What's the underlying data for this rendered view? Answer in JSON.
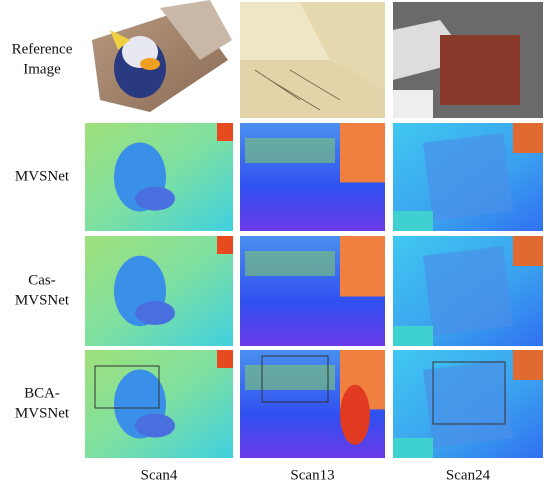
{
  "row_labels": [
    [
      "Reference",
      "Image"
    ],
    [
      "MVSNet"
    ],
    [
      "Cas-",
      "MVSNet"
    ],
    [
      "BCA-",
      "MVSNet"
    ]
  ],
  "column_labels": [
    "Scan4",
    "Scan13",
    "Scan24"
  ]
}
